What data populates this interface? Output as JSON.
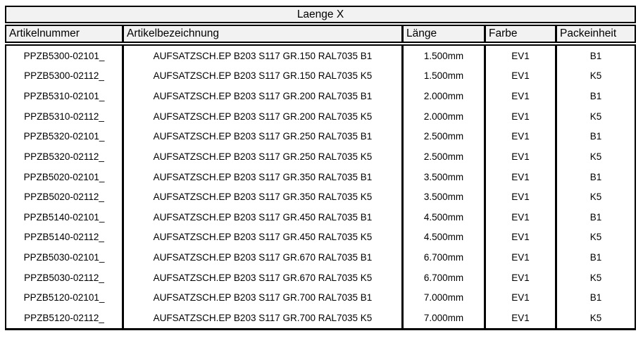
{
  "table": {
    "title": "Laenge X",
    "columns": [
      "Artikelnummer",
      "Artikelbezeichnung",
      "Länge",
      "Farbe",
      "Packeinheit"
    ],
    "rows": [
      [
        "PPZB5300-02101_",
        "AUFSATZSCH.EP B203 S117 GR.150 RAL7035 B1",
        "1.500mm",
        "EV1",
        "B1"
      ],
      [
        "PPZB5300-02112_",
        "AUFSATZSCH.EP B203 S117 GR.150 RAL7035 K5",
        "1.500mm",
        "EV1",
        "K5"
      ],
      [
        "PPZB5310-02101_",
        "AUFSATZSCH.EP B203 S117 GR.200 RAL7035 B1",
        "2.000mm",
        "EV1",
        "B1"
      ],
      [
        "PPZB5310-02112_",
        "AUFSATZSCH.EP B203 S117 GR.200 RAL7035 K5",
        "2.000mm",
        "EV1",
        "K5"
      ],
      [
        "PPZB5320-02101_",
        "AUFSATZSCH.EP B203 S117 GR.250 RAL7035 B1",
        "2.500mm",
        "EV1",
        "B1"
      ],
      [
        "PPZB5320-02112_",
        "AUFSATZSCH.EP B203 S117 GR.250 RAL7035 K5",
        "2.500mm",
        "EV1",
        "K5"
      ],
      [
        "PPZB5020-02101_",
        "AUFSATZSCH.EP B203 S117 GR.350 RAL7035 B1",
        "3.500mm",
        "EV1",
        "B1"
      ],
      [
        "PPZB5020-02112_",
        "AUFSATZSCH.EP B203 S117 GR.350 RAL7035 K5",
        "3.500mm",
        "EV1",
        "K5"
      ],
      [
        "PPZB5140-02101_",
        "AUFSATZSCH.EP B203 S117 GR.450 RAL7035 B1",
        "4.500mm",
        "EV1",
        "B1"
      ],
      [
        "PPZB5140-02112_",
        "AUFSATZSCH.EP B203 S117 GR.450 RAL7035 K5",
        "4.500mm",
        "EV1",
        "K5"
      ],
      [
        "PPZB5030-02101_",
        "AUFSATZSCH.EP B203 S117 GR.670 RAL7035 B1",
        "6.700mm",
        "EV1",
        "B1"
      ],
      [
        "PPZB5030-02112_",
        "AUFSATZSCH.EP B203 S117 GR.670 RAL7035 K5",
        "6.700mm",
        "EV1",
        "K5"
      ],
      [
        "PPZB5120-02101_",
        "AUFSATZSCH.EP B203 S117 GR.700 RAL7035 B1",
        "7.000mm",
        "EV1",
        "B1"
      ],
      [
        "PPZB5120-02112_",
        "AUFSATZSCH.EP B203 S117 GR.700 RAL7035 K5",
        "7.000mm",
        "EV1",
        "K5"
      ]
    ],
    "colors": {
      "border": "#000000",
      "header_bg": "#f2f2f2",
      "body_bg": "#ffffff",
      "text": "#000000"
    }
  }
}
